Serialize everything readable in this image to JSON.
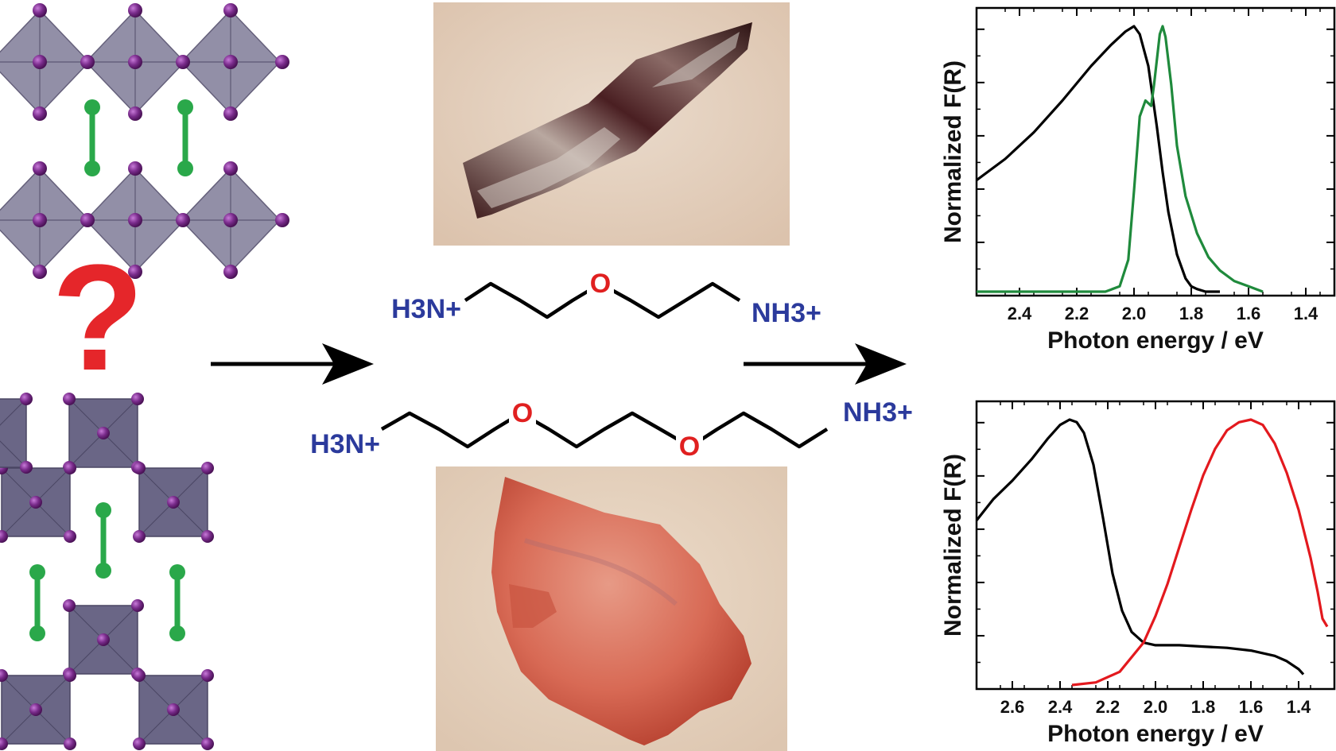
{
  "molecules": {
    "top": {
      "left": "H3N+",
      "center_atom": "O",
      "right": "NH3+"
    },
    "bottom": {
      "left": "H3N+",
      "atom1": "O",
      "atom2": "O",
      "right": "NH3+"
    }
  },
  "question_mark": "?",
  "colors": {
    "octahedron_top": "#8d8aa3",
    "octahedron_bottom": "#6a6686",
    "iodide": "#7a2c8c",
    "spacer": "#2aa84a",
    "arrow": "#000000",
    "amine": "#2b3a9c",
    "oxygen": "#e02020",
    "question": "#e5262a",
    "crystal_top_bg": "#e6d1c0",
    "crystal_bottom_bg": "#e8d6c4",
    "series_black": "#000000",
    "series_green": "#1f8a3c",
    "series_red": "#e3191e"
  },
  "chart_data": [
    {
      "type": "line",
      "title": "",
      "xlabel": "Photon energy / eV",
      "ylabel": "Normalized F(R)",
      "xlim": [
        2.55,
        1.3
      ],
      "ylim": [
        0,
        1.0
      ],
      "x_reversed": true,
      "xticks": [
        "2.4",
        "2.2",
        "2.0",
        "1.8",
        "1.6",
        "1.4"
      ],
      "grid": false,
      "series": [
        {
          "color": "black",
          "x": [
            2.55,
            2.45,
            2.35,
            2.25,
            2.15,
            2.08,
            2.03,
            2.0,
            1.98,
            1.95,
            1.92,
            1.9,
            1.88,
            1.85,
            1.82,
            1.8,
            1.78,
            1.75,
            1.72,
            1.7
          ],
          "y": [
            0.42,
            0.5,
            0.6,
            0.72,
            0.85,
            0.93,
            0.98,
            1.0,
            0.97,
            0.85,
            0.62,
            0.45,
            0.3,
            0.14,
            0.05,
            0.02,
            0.01,
            0.0,
            0.0,
            0.0
          ]
        },
        {
          "color": "green",
          "x": [
            2.55,
            2.1,
            2.05,
            2.02,
            2.0,
            1.98,
            1.96,
            1.94,
            1.93,
            1.91,
            1.9,
            1.89,
            1.87,
            1.85,
            1.82,
            1.78,
            1.74,
            1.7,
            1.65,
            1.6,
            1.55
          ],
          "y": [
            0.0,
            0.0,
            0.02,
            0.12,
            0.38,
            0.66,
            0.72,
            0.7,
            0.78,
            0.97,
            1.0,
            0.96,
            0.78,
            0.55,
            0.36,
            0.22,
            0.13,
            0.08,
            0.04,
            0.02,
            0.0
          ]
        }
      ]
    },
    {
      "type": "line",
      "title": "",
      "xlabel": "Photon energy / eV",
      "ylabel": "Normalized F(R)",
      "xlim": [
        2.75,
        1.25
      ],
      "ylim": [
        0,
        1.0
      ],
      "x_reversed": true,
      "xticks": [
        "2.6",
        "2.4",
        "2.2",
        "2.0",
        "1.8",
        "1.6",
        "1.4"
      ],
      "grid": false,
      "series": [
        {
          "color": "black",
          "x": [
            2.75,
            2.68,
            2.6,
            2.52,
            2.45,
            2.4,
            2.36,
            2.33,
            2.3,
            2.26,
            2.22,
            2.18,
            2.14,
            2.1,
            2.05,
            2.0,
            1.9,
            1.8,
            1.7,
            1.6,
            1.5,
            1.45,
            1.4,
            1.38
          ],
          "y": [
            0.62,
            0.7,
            0.77,
            0.85,
            0.93,
            0.98,
            1.0,
            0.99,
            0.95,
            0.83,
            0.63,
            0.42,
            0.28,
            0.2,
            0.16,
            0.15,
            0.15,
            0.145,
            0.14,
            0.13,
            0.11,
            0.09,
            0.06,
            0.04
          ]
        },
        {
          "color": "red",
          "x": [
            2.35,
            2.25,
            2.15,
            2.05,
            2.0,
            1.95,
            1.9,
            1.85,
            1.8,
            1.75,
            1.7,
            1.65,
            1.6,
            1.55,
            1.5,
            1.45,
            1.4,
            1.35,
            1.32,
            1.3,
            1.28
          ],
          "y": [
            0.0,
            0.01,
            0.05,
            0.16,
            0.26,
            0.38,
            0.52,
            0.66,
            0.79,
            0.89,
            0.96,
            0.99,
            1.0,
            0.98,
            0.91,
            0.8,
            0.66,
            0.48,
            0.35,
            0.25,
            0.22
          ]
        }
      ]
    }
  ]
}
